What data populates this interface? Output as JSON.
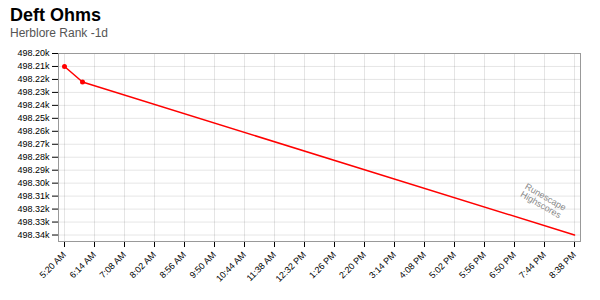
{
  "chart_data": {
    "type": "line",
    "title": "Deft Ohms",
    "subtitle": "Herblore Rank -1d",
    "x": [
      0,
      0.6,
      17
    ],
    "series": [
      {
        "type": "line",
        "color": "#ff0000",
        "values": [
          498210,
          498222,
          498340
        ]
      },
      {
        "type": "scatter",
        "marker": "o",
        "color": "#ff0000",
        "x": [
          0,
          0.6
        ],
        "values": [
          498210,
          498222
        ]
      }
    ],
    "xlim": [
      -0.2,
      17.2
    ],
    "xticks": [
      {
        "value": 0,
        "label": "5:20 AM"
      },
      {
        "value": 1,
        "label": "6:14 AM"
      },
      {
        "value": 2,
        "label": "7:08 AM"
      },
      {
        "value": 3,
        "label": "8:02 AM"
      },
      {
        "value": 4,
        "label": "8:56 AM"
      },
      {
        "value": 5,
        "label": "9:50 AM"
      },
      {
        "value": 6,
        "label": "10:44 AM"
      },
      {
        "value": 7,
        "label": "11:38 AM"
      },
      {
        "value": 8,
        "label": "12:32 PM"
      },
      {
        "value": 9,
        "label": "1:26 PM"
      },
      {
        "value": 10,
        "label": "2:20 PM"
      },
      {
        "value": 11,
        "label": "3:14 PM"
      },
      {
        "value": 12,
        "label": "4:08 PM"
      },
      {
        "value": 13,
        "label": "5:02 PM"
      },
      {
        "value": 14,
        "label": "5:56 PM"
      },
      {
        "value": 15,
        "label": "6:50 PM"
      },
      {
        "value": 16,
        "label": "7:44 PM"
      },
      {
        "value": 17,
        "label": "8:38 PM"
      }
    ],
    "ylim": [
      498345,
      498200
    ],
    "yticks": [
      {
        "value": 498200,
        "label": "498.20k"
      },
      {
        "value": 498210,
        "label": "498.21k"
      },
      {
        "value": 498220,
        "label": "498.22k"
      },
      {
        "value": 498230,
        "label": "498.23k"
      },
      {
        "value": 498240,
        "label": "498.24k"
      },
      {
        "value": 498250,
        "label": "498.25k"
      },
      {
        "value": 498260,
        "label": "498.26k"
      },
      {
        "value": 498270,
        "label": "498.27k"
      },
      {
        "value": 498280,
        "label": "498.28k"
      },
      {
        "value": 498290,
        "label": "498.29k"
      },
      {
        "value": 498300,
        "label": "498.30k"
      },
      {
        "value": 498310,
        "label": "498.31k"
      },
      {
        "value": 498320,
        "label": "498.32k"
      },
      {
        "value": 498330,
        "label": "498.33k"
      },
      {
        "value": 498340,
        "label": "498.34k"
      }
    ],
    "grid": true,
    "annotations": [
      {
        "text": "Runescape\nHighscores",
        "x": 15.3,
        "y": 498305
      }
    ]
  }
}
